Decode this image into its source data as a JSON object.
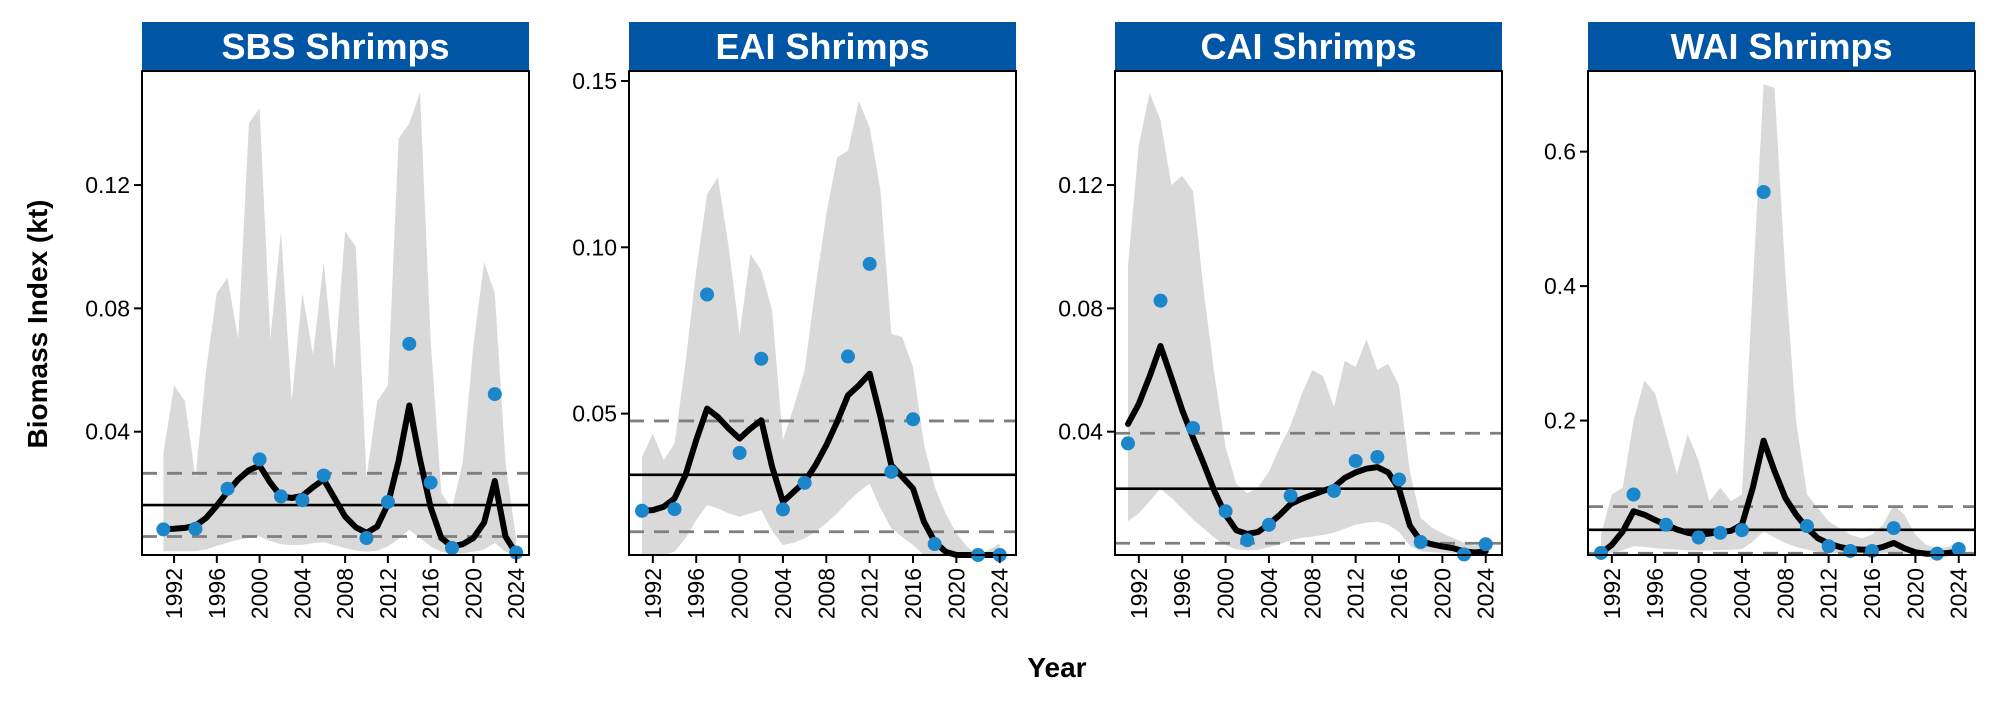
{
  "figure": {
    "xlabel": "Year",
    "ylabel": "Biomass Index (kt)",
    "colors": {
      "strip": "#0055A4",
      "point": "#1B86CA",
      "ribbon": "#D9D9D9",
      "trend": "#000000",
      "reference": "#000000",
      "reference_dashed": "#7F7F7F"
    }
  },
  "chart_data": [
    {
      "type": "line",
      "title": "SBS Shrimps",
      "xlim": [
        1989,
        2025.2
      ],
      "ylim": [
        0,
        0.157
      ],
      "yticks": [
        0.04,
        0.08,
        0.12
      ],
      "ytick_labels": [
        "0.04",
        "0.08",
        "0.12"
      ],
      "xticks": [
        1992,
        1996,
        2000,
        2004,
        2008,
        2012,
        2016,
        2020,
        2024
      ],
      "xtick_labels": [
        "1992",
        "1996",
        "2000",
        "2004",
        "2008",
        "2012",
        "2016",
        "2020",
        "2024"
      ],
      "mean": 0.0162,
      "lower_ref": 0.006,
      "upper_ref": 0.0265,
      "points": {
        "x": [
          1991,
          1994,
          1997,
          2000,
          2002,
          2004,
          2006,
          2010,
          2012,
          2014,
          2016,
          2018,
          2022,
          2024
        ],
        "y": [
          0.0083,
          0.0085,
          0.0215,
          0.031,
          0.019,
          0.0178,
          0.0258,
          0.0055,
          0.0172,
          0.0685,
          0.0235,
          0.0023,
          0.0522,
          0.0008
        ]
      },
      "trend": {
        "x": [
          1991,
          1992,
          1993,
          1994,
          1995,
          1996,
          1997,
          1998,
          1999,
          2000,
          2001,
          2002,
          2003,
          2004,
          2005,
          2006,
          2007,
          2008,
          2009,
          2010,
          2011,
          2012,
          2013,
          2014,
          2015,
          2016,
          2017,
          2018,
          2019,
          2020,
          2021,
          2022,
          2023,
          2024
        ],
        "y": [
          0.0083,
          0.0085,
          0.0088,
          0.0095,
          0.012,
          0.016,
          0.0205,
          0.0245,
          0.0275,
          0.029,
          0.0235,
          0.019,
          0.0185,
          0.0192,
          0.022,
          0.0245,
          0.0185,
          0.0125,
          0.009,
          0.0072,
          0.0092,
          0.0165,
          0.0305,
          0.0485,
          0.031,
          0.0155,
          0.0055,
          0.0028,
          0.0035,
          0.0055,
          0.0105,
          0.024,
          0.006,
          0.0005
        ]
      },
      "ribbon": {
        "x": [
          1991,
          1992,
          1993,
          1994,
          1995,
          1996,
          1997,
          1998,
          1999,
          2000,
          2001,
          2002,
          2003,
          2004,
          2005,
          2006,
          2007,
          2008,
          2009,
          2010,
          2011,
          2012,
          2013,
          2014,
          2015,
          2016,
          2017,
          2018,
          2019,
          2020,
          2021,
          2022,
          2023,
          2024
        ],
        "lower": [
          0.0012,
          0.0012,
          0.0012,
          0.0012,
          0.0018,
          0.003,
          0.004,
          0.005,
          0.0055,
          0.006,
          0.0045,
          0.0035,
          0.0032,
          0.0033,
          0.0038,
          0.0042,
          0.0032,
          0.0022,
          0.0015,
          0.0011,
          0.0014,
          0.0028,
          0.0052,
          0.0082,
          0.0055,
          0.0028,
          0.001,
          0.0005,
          0.0006,
          0.001,
          0.0018,
          0.004,
          0.001,
          0.0001
        ],
        "upper": [
          0.033,
          0.055,
          0.05,
          0.025,
          0.06,
          0.085,
          0.09,
          0.07,
          0.14,
          0.145,
          0.07,
          0.105,
          0.05,
          0.085,
          0.065,
          0.095,
          0.06,
          0.105,
          0.1,
          0.025,
          0.05,
          0.055,
          0.135,
          0.14,
          0.15,
          0.07,
          0.02,
          0.015,
          0.03,
          0.068,
          0.095,
          0.085,
          0.03,
          0.005
        ]
      }
    },
    {
      "type": "line",
      "title": "EAI Shrimps",
      "xlim": [
        1989.8,
        2025.5
      ],
      "ylim": [
        0.0075,
        0.153
      ],
      "yticks": [
        0.05,
        0.1,
        0.15
      ],
      "ytick_labels": [
        "0.05",
        "0.10",
        "0.15"
      ],
      "xticks": [
        1992,
        1996,
        2000,
        2004,
        2008,
        2012,
        2016,
        2020,
        2024
      ],
      "xtick_labels": [
        "1992",
        "1996",
        "2000",
        "2004",
        "2008",
        "2012",
        "2016",
        "2020",
        "2024"
      ],
      "mean": 0.0316,
      "lower_ref": 0.0145,
      "upper_ref": 0.0478,
      "points": {
        "x": [
          1991,
          1994,
          1997,
          2000,
          2002,
          2004,
          2006,
          2010,
          2012,
          2014,
          2016,
          2018,
          2022,
          2024
        ],
        "y": [
          0.0208,
          0.0213,
          0.0858,
          0.0382,
          0.0665,
          0.0212,
          0.0292,
          0.0672,
          0.095,
          0.0325,
          0.0483,
          0.0108,
          0.0028,
          0.0058
        ]
      },
      "trend": {
        "x": [
          1991,
          1992,
          1993,
          1994,
          1995,
          1996,
          1997,
          1998,
          1999,
          2000,
          2001,
          2002,
          2003,
          2004,
          2005,
          2006,
          2007,
          2008,
          2009,
          2010,
          2011,
          2012,
          2013,
          2014,
          2015,
          2016,
          2017,
          2018,
          2019,
          2020,
          2021,
          2022,
          2023,
          2024
        ],
        "y": [
          0.0208,
          0.021,
          0.022,
          0.0245,
          0.0315,
          0.042,
          0.0515,
          0.049,
          0.0455,
          0.0425,
          0.0455,
          0.048,
          0.034,
          0.0235,
          0.0265,
          0.0295,
          0.0345,
          0.0405,
          0.0475,
          0.0555,
          0.0585,
          0.062,
          0.049,
          0.0345,
          0.031,
          0.0275,
          0.0175,
          0.0115,
          0.0085,
          0.006,
          0.004,
          0.0028,
          0.0035,
          0.0055
        ]
      },
      "ribbon": {
        "x": [
          1991,
          1992,
          1993,
          1994,
          1995,
          1996,
          1997,
          1998,
          1999,
          2000,
          2001,
          2002,
          2003,
          2004,
          2005,
          2006,
          2007,
          2008,
          2009,
          2010,
          2011,
          2012,
          2013,
          2014,
          2015,
          2016,
          2017,
          2018,
          2019,
          2020,
          2021,
          2022,
          2023,
          2024
        ],
        "lower": [
          0.0055,
          0.0058,
          0.0068,
          0.0085,
          0.0125,
          0.018,
          0.0225,
          0.0215,
          0.02,
          0.019,
          0.02,
          0.021,
          0.0148,
          0.0105,
          0.0112,
          0.0125,
          0.0145,
          0.017,
          0.02,
          0.0235,
          0.0265,
          0.029,
          0.0215,
          0.0155,
          0.013,
          0.0105,
          0.0065,
          0.0045,
          0.0033,
          0.0025,
          0.0015,
          0.0011,
          0.0014,
          0.002
        ],
        "upper": [
          0.037,
          0.044,
          0.036,
          0.041,
          0.065,
          0.093,
          0.116,
          0.121,
          0.1,
          0.074,
          0.098,
          0.093,
          0.081,
          0.042,
          0.052,
          0.063,
          0.088,
          0.11,
          0.127,
          0.129,
          0.144,
          0.136,
          0.117,
          0.074,
          0.073,
          0.064,
          0.041,
          0.028,
          0.02,
          0.014,
          0.01,
          0.007,
          0.009,
          0.011
        ]
      }
    },
    {
      "type": "line",
      "title": "CAI Shrimps",
      "xlim": [
        1989.8,
        2025.5
      ],
      "ylim": [
        0,
        0.157
      ],
      "yticks": [
        0.04,
        0.08,
        0.12
      ],
      "ytick_labels": [
        "0.04",
        "0.08",
        "0.12"
      ],
      "xticks": [
        1992,
        1996,
        2000,
        2004,
        2008,
        2012,
        2016,
        2020,
        2024
      ],
      "xtick_labels": [
        "1992",
        "1996",
        "2000",
        "2004",
        "2008",
        "2012",
        "2016",
        "2020",
        "2024"
      ],
      "mean": 0.0215,
      "lower_ref": 0.0038,
      "upper_ref": 0.0395,
      "points": {
        "x": [
          1991,
          1994,
          1997,
          2000,
          2002,
          2004,
          2006,
          2010,
          2012,
          2014,
          2016,
          2018,
          2022,
          2024
        ],
        "y": [
          0.0362,
          0.0825,
          0.0412,
          0.0142,
          0.0048,
          0.0098,
          0.0192,
          0.0208,
          0.0305,
          0.0318,
          0.0245,
          0.0042,
          0.0002,
          0.0035
        ]
      },
      "trend": {
        "x": [
          1991,
          1992,
          1993,
          1994,
          1995,
          1996,
          1997,
          1998,
          1999,
          2000,
          2001,
          2002,
          2003,
          2004,
          2005,
          2006,
          2007,
          2008,
          2009,
          2010,
          2011,
          2012,
          2013,
          2014,
          2015,
          2016,
          2017,
          2018,
          2019,
          2020,
          2021,
          2022,
          2023,
          2024
        ],
        "y": [
          0.0425,
          0.049,
          0.058,
          0.0678,
          0.0575,
          0.047,
          0.038,
          0.0295,
          0.0205,
          0.013,
          0.008,
          0.0068,
          0.0075,
          0.01,
          0.013,
          0.0165,
          0.0182,
          0.0195,
          0.0208,
          0.022,
          0.025,
          0.0268,
          0.028,
          0.0285,
          0.0268,
          0.0215,
          0.0095,
          0.0045,
          0.0035,
          0.0028,
          0.0022,
          0.0012,
          0.0008,
          0.0012
        ]
      },
      "ribbon": {
        "x": [
          1991,
          1992,
          1993,
          1994,
          1995,
          1996,
          1997,
          1998,
          1999,
          2000,
          2001,
          2002,
          2003,
          2004,
          2005,
          2006,
          2007,
          2008,
          2009,
          2010,
          2011,
          2012,
          2013,
          2014,
          2015,
          2016,
          2017,
          2018,
          2019,
          2020,
          2021,
          2022,
          2023,
          2024
        ],
        "lower": [
          0.011,
          0.0135,
          0.0175,
          0.0215,
          0.0185,
          0.015,
          0.0115,
          0.0085,
          0.0055,
          0.0032,
          0.0018,
          0.0015,
          0.0017,
          0.0025,
          0.0035,
          0.0048,
          0.0055,
          0.006,
          0.0065,
          0.0072,
          0.0085,
          0.0098,
          0.0105,
          0.0108,
          0.0098,
          0.0075,
          0.003,
          0.0012,
          0.0009,
          0.0007,
          0.0005,
          0.0003,
          0.0002,
          0.0003
        ],
        "upper": [
          0.094,
          0.133,
          0.15,
          0.141,
          0.12,
          0.123,
          0.118,
          0.085,
          0.058,
          0.035,
          0.023,
          0.02,
          0.022,
          0.027,
          0.035,
          0.042,
          0.052,
          0.06,
          0.058,
          0.048,
          0.063,
          0.061,
          0.07,
          0.06,
          0.062,
          0.055,
          0.027,
          0.012,
          0.009,
          0.007,
          0.0055,
          0.004,
          0.003,
          0.004
        ]
      }
    },
    {
      "type": "line",
      "title": "WAI Shrimps",
      "xlim": [
        1989.8,
        2025.5
      ],
      "ylim": [
        0,
        0.72
      ],
      "yticks": [
        0.2,
        0.4,
        0.6
      ],
      "ytick_labels": [
        "0.2",
        "0.4",
        "0.6"
      ],
      "xticks": [
        1992,
        1996,
        2000,
        2004,
        2008,
        2012,
        2016,
        2020,
        2024
      ],
      "xtick_labels": [
        "1992",
        "1996",
        "2000",
        "2004",
        "2008",
        "2012",
        "2016",
        "2020",
        "2024"
      ],
      "mean": 0.0375,
      "lower_ref": 0.0025,
      "upper_ref": 0.072,
      "points": {
        "x": [
          1991,
          1994,
          1997,
          2000,
          2002,
          2004,
          2006,
          2010,
          2012,
          2014,
          2016,
          2018,
          2022,
          2024
        ],
        "y": [
          0.003,
          0.09,
          0.045,
          0.026,
          0.033,
          0.037,
          0.54,
          0.043,
          0.013,
          0.006,
          0.006,
          0.04,
          0.002,
          0.009
        ]
      },
      "trend": {
        "x": [
          1991,
          1992,
          1993,
          1994,
          1995,
          1996,
          1997,
          1998,
          1999,
          2000,
          2001,
          2002,
          2003,
          2004,
          2005,
          2006,
          2007,
          2008,
          2009,
          2010,
          2011,
          2012,
          2013,
          2014,
          2015,
          2016,
          2017,
          2018,
          2019,
          2020,
          2021,
          2022,
          2023,
          2024
        ],
        "y": [
          0.003,
          0.015,
          0.035,
          0.065,
          0.06,
          0.052,
          0.045,
          0.038,
          0.033,
          0.03,
          0.032,
          0.034,
          0.036,
          0.045,
          0.1,
          0.17,
          0.125,
          0.085,
          0.06,
          0.04,
          0.025,
          0.017,
          0.012,
          0.009,
          0.008,
          0.008,
          0.012,
          0.018,
          0.01,
          0.004,
          0.002,
          0.002,
          0.003,
          0.005
        ]
      },
      "ribbon": {
        "x": [
          1991,
          1992,
          1993,
          1994,
          1995,
          1996,
          1997,
          1998,
          1999,
          2000,
          2001,
          2002,
          2003,
          2004,
          2005,
          2006,
          2007,
          2008,
          2009,
          2010,
          2011,
          2012,
          2013,
          2014,
          2015,
          2016,
          2017,
          2018,
          2019,
          2020,
          2021,
          2022,
          2023,
          2024
        ],
        "lower": [
          0.0005,
          0.003,
          0.007,
          0.013,
          0.012,
          0.01,
          0.009,
          0.008,
          0.007,
          0.0065,
          0.007,
          0.0075,
          0.0078,
          0.009,
          0.02,
          0.035,
          0.026,
          0.018,
          0.012,
          0.008,
          0.005,
          0.0035,
          0.0025,
          0.002,
          0.0018,
          0.0018,
          0.0025,
          0.0035,
          0.002,
          0.001,
          0.0005,
          0.0005,
          0.0007,
          0.001
        ],
        "upper": [
          0.03,
          0.09,
          0.1,
          0.2,
          0.26,
          0.24,
          0.18,
          0.12,
          0.18,
          0.14,
          0.08,
          0.1,
          0.08,
          0.09,
          0.4,
          0.7,
          0.695,
          0.42,
          0.2,
          0.09,
          0.07,
          0.05,
          0.04,
          0.03,
          0.025,
          0.03,
          0.045,
          0.075,
          0.06,
          0.03,
          0.015,
          0.01,
          0.012,
          0.02
        ]
      }
    }
  ]
}
